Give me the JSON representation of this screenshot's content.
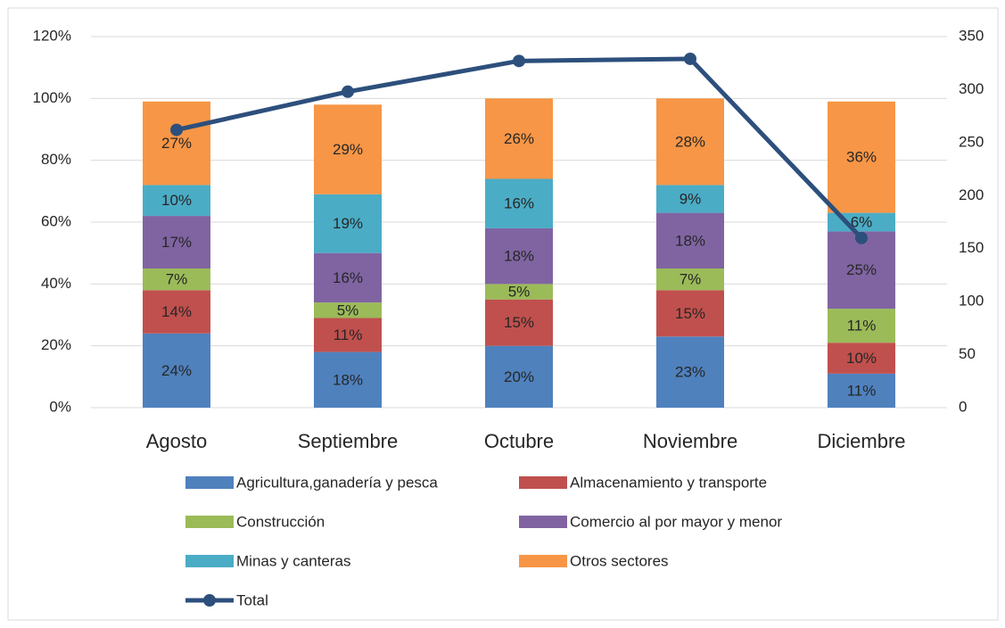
{
  "chart_data": {
    "type": "bar",
    "stacked": true,
    "categories": [
      "Agosto",
      "Septiembre",
      "Octubre",
      "Noviembre",
      "Diciembre"
    ],
    "series": [
      {
        "name": "Agricultura,ganadería y pesca",
        "color": "#4f81bd",
        "values": [
          24,
          18,
          20,
          23,
          11
        ],
        "value_labels": [
          "24%",
          "18%",
          "20%",
          "23%",
          "11%"
        ]
      },
      {
        "name": "Almacenamiento y transporte",
        "color": "#c0504d",
        "values": [
          14,
          11,
          15,
          15,
          10
        ],
        "value_labels": [
          "14%",
          "11%",
          "15%",
          "15%",
          "10%"
        ]
      },
      {
        "name": "Construcción",
        "color": "#9bbb59",
        "values": [
          7,
          5,
          5,
          7,
          11
        ],
        "value_labels": [
          "7%",
          "5%",
          "5%",
          "7%",
          "11%"
        ]
      },
      {
        "name": "Comercio al por mayor y menor",
        "color": "#8064a2",
        "values": [
          17,
          16,
          18,
          18,
          25
        ],
        "value_labels": [
          "17%",
          "16%",
          "18%",
          "18%",
          "25%"
        ]
      },
      {
        "name": "Minas y canteras",
        "color": "#4bacc6",
        "values": [
          10,
          19,
          16,
          9,
          6
        ],
        "value_labels": [
          "10%",
          "19%",
          "16%",
          "9%",
          "6%"
        ]
      },
      {
        "name": "Otros sectores",
        "color": "#f79646",
        "values": [
          27,
          29,
          26,
          28,
          36
        ],
        "value_labels": [
          "27%",
          "29%",
          "26%",
          "28%",
          "36%"
        ]
      },
      {
        "name": "Total",
        "color": "#2d4f7c",
        "type": "line",
        "axis": "y2",
        "values": [
          262,
          298,
          327,
          329,
          160
        ]
      }
    ],
    "ylim": [
      0,
      120
    ],
    "yticks": [
      {
        "value": 0,
        "label": "0%"
      },
      {
        "value": 20,
        "label": "20%"
      },
      {
        "value": 40,
        "label": "40%"
      },
      {
        "value": 60,
        "label": "60%"
      },
      {
        "value": 80,
        "label": "80%"
      },
      {
        "value": 100,
        "label": "100%"
      },
      {
        "value": 120,
        "label": "120%"
      }
    ],
    "y2lim": [
      0,
      350
    ],
    "y2ticks": [
      0,
      50,
      100,
      150,
      200,
      250,
      300,
      350
    ],
    "grid": true,
    "legend": "bottom"
  }
}
